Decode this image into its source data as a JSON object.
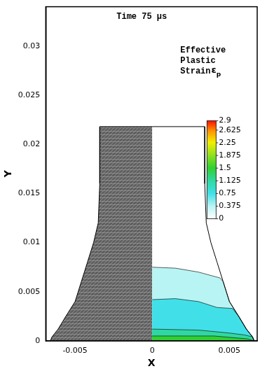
{
  "chart_data": {
    "type": "contour",
    "title": "Time 75 µs",
    "x_label": "X",
    "y_label": "Y",
    "xlim": [
      -0.0069,
      0.0068
    ],
    "ylim": [
      0,
      0.034
    ],
    "xticks": [
      -0.005,
      0,
      0.005
    ],
    "yticks": [
      0,
      0.005,
      0.01,
      0.015,
      0.02,
      0.025,
      0.03
    ],
    "grid": false,
    "left_mesh": {
      "x": [
        0,
        -0.0034,
        -0.0034,
        -0.0035,
        -0.0038,
        -0.0042,
        -0.0046,
        -0.005,
        -0.0056,
        -0.0061,
        -0.0065,
        -0.0066,
        0
      ],
      "y": [
        0.0218,
        0.0218,
        0.016,
        0.012,
        0.01,
        0.008,
        0.006,
        0.004,
        0.0025,
        0.0012,
        0.0004,
        0,
        0
      ]
    },
    "right_outline": {
      "x": [
        0,
        0.0034,
        0.0034,
        0.0035,
        0.0038,
        0.0042,
        0.0046,
        0.005,
        0.0056,
        0.0061,
        0.0065,
        0.0066,
        0
      ],
      "y": [
        0.0218,
        0.0218,
        0.016,
        0.012,
        0.01,
        0.008,
        0.006,
        0.004,
        0.0025,
        0.0012,
        0.0004,
        0,
        0
      ]
    },
    "strain_contours": [
      {
        "value": 0.375,
        "x": [
          0,
          0.0015,
          0.003,
          0.0044,
          0.0046,
          0.005,
          0.0056,
          0.0061,
          0.0065,
          0.0066,
          0
        ],
        "y": [
          0.0075,
          0.0074,
          0.007,
          0.0064,
          0.006,
          0.004,
          0.0025,
          0.0012,
          0.0004,
          0,
          0
        ]
      },
      {
        "value": 0.75,
        "x": [
          0,
          0.0015,
          0.003,
          0.0042,
          0.0052,
          0.0056,
          0.0061,
          0.0065,
          0.0066,
          0
        ],
        "y": [
          0.0042,
          0.0043,
          0.004,
          0.0034,
          0.0033,
          0.0025,
          0.0012,
          0.0004,
          0,
          0
        ]
      },
      {
        "value": 1.125,
        "x": [
          0,
          0.003,
          0.005,
          0.006,
          0.0065,
          0.0066,
          0
        ],
        "y": [
          0.0012,
          0.0011,
          0.0008,
          0.0006,
          0.0004,
          0,
          0
        ]
      },
      {
        "value": 1.5,
        "x": [
          0,
          0.004,
          0.0062,
          0.0066,
          0
        ],
        "y": [
          0.0005,
          0.0005,
          0.0002,
          0,
          0
        ]
      }
    ],
    "colorbar": {
      "title": "Effective Plastic Strain",
      "symbol": "ε",
      "symbol_subscript": "p",
      "range": [
        0,
        2.9
      ],
      "ticks": [
        0,
        0.375,
        0.75,
        1.125,
        1.5,
        1.875,
        2.25,
        2.625,
        2.9
      ]
    }
  }
}
